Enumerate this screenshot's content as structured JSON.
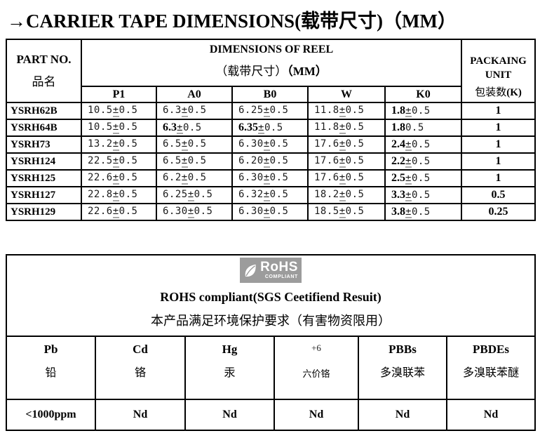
{
  "title": "→CARRIER TAPE DIMENSIONS(载带尺寸)（MM）",
  "dim_table": {
    "part_no": {
      "en": "PART NO.",
      "cn": "品名"
    },
    "reel_header": {
      "en": "DIMENSIONS OF REEL",
      "cn": "（载带尺寸）",
      "cn_mm": "（MM）"
    },
    "columns": [
      "P1",
      "A0",
      "B0",
      "W",
      "K0"
    ],
    "packaging": {
      "en1": "PACKAING",
      "en2": "UNIT",
      "cn": "包装数",
      "cn_suffix": "(K)"
    },
    "rows": [
      {
        "part": "YSRH62B",
        "dims": [
          {
            "bold": "",
            "rest": "10.5±0.5"
          },
          {
            "bold": "",
            "rest": "6.3±0.5"
          },
          {
            "bold": "",
            "rest": "6.25±0.5"
          },
          {
            "bold": "",
            "rest": "11.8±0.5"
          },
          {
            "bold": "1.8",
            "rest": "±0.5"
          }
        ],
        "unit": "1"
      },
      {
        "part": "YSRH64B",
        "dims": [
          {
            "bold": "",
            "rest": "10.5±0.5"
          },
          {
            "bold": "6.3",
            "rest": "±0.5"
          },
          {
            "bold": "6.35",
            "rest": "±0.5"
          },
          {
            "bold": "",
            "rest": "11.8±0.5"
          },
          {
            "bold": "1.8",
            "rest": "0.5"
          }
        ],
        "unit": "1"
      },
      {
        "part": "YSRH73",
        "dims": [
          {
            "bold": "",
            "rest": "13.2±0.5"
          },
          {
            "bold": "",
            "rest": "6.5±0.5"
          },
          {
            "bold": "",
            "rest": "6.30±0.5"
          },
          {
            "bold": "",
            "rest": "17.6±0.5"
          },
          {
            "bold": "2.4",
            "rest": "±0.5"
          }
        ],
        "unit": "1"
      },
      {
        "part": "YSRH124",
        "dims": [
          {
            "bold": "",
            "rest": "22.5±0.5"
          },
          {
            "bold": "",
            "rest": "6.5±0.5"
          },
          {
            "bold": "",
            "rest": "6.20±0.5"
          },
          {
            "bold": "",
            "rest": "17.6±0.5"
          },
          {
            "bold": "2.2",
            "rest": "±0.5"
          }
        ],
        "unit": "1"
      },
      {
        "part": "YSRH125",
        "dims": [
          {
            "bold": "",
            "rest": "22.6±0.5"
          },
          {
            "bold": "",
            "rest": "6.2±0.5"
          },
          {
            "bold": "",
            "rest": "6.30±0.5"
          },
          {
            "bold": "",
            "rest": "17.6±0.5"
          },
          {
            "bold": "2.5",
            "rest": "±0.5"
          }
        ],
        "unit": "1"
      },
      {
        "part": "YSRH127",
        "dims": [
          {
            "bold": "",
            "rest": "22.8±0.5"
          },
          {
            "bold": "",
            "rest": "6.25±0.5"
          },
          {
            "bold": "",
            "rest": "6.32±0.5"
          },
          {
            "bold": "",
            "rest": "18.2±0.5"
          },
          {
            "bold": "3.3",
            "rest": "±0.5"
          }
        ],
        "unit": "0.5"
      },
      {
        "part": "YSRH129",
        "dims": [
          {
            "bold": "",
            "rest": "22.6±0.5"
          },
          {
            "bold": "",
            "rest": "6.30±0.5"
          },
          {
            "bold": "",
            "rest": "6.30±0.5"
          },
          {
            "bold": "",
            "rest": "18.5±0.5"
          },
          {
            "bold": "3.8",
            "rest": "±0.5"
          }
        ],
        "unit": "0.25"
      }
    ]
  },
  "rohs_table": {
    "logo": {
      "main": "RoHS",
      "sub": "COMPLIANT",
      "bg_color": "#9c9c9c",
      "fg_color": "#ffffff"
    },
    "line_en": "ROHS compliant(SGS Ceetifiend Resuit)",
    "line_cn": "本产品满足环境保护要求（有害物资限用）",
    "columns": [
      {
        "en": "Pb",
        "cn": "铅",
        "small": false
      },
      {
        "en": "Cd",
        "cn": "铬",
        "small": false
      },
      {
        "en": "Hg",
        "cn": "汞",
        "small": false
      },
      {
        "en": "+6",
        "cn": "六价铬",
        "small": true
      },
      {
        "en": "PBBs",
        "cn": "多溴联苯",
        "small": false
      },
      {
        "en": "PBDEs",
        "cn": "多溴联苯醚",
        "small": false
      }
    ],
    "values": [
      "<1000ppm",
      "Nd",
      "Nd",
      "Nd",
      "Nd",
      "Nd"
    ]
  }
}
